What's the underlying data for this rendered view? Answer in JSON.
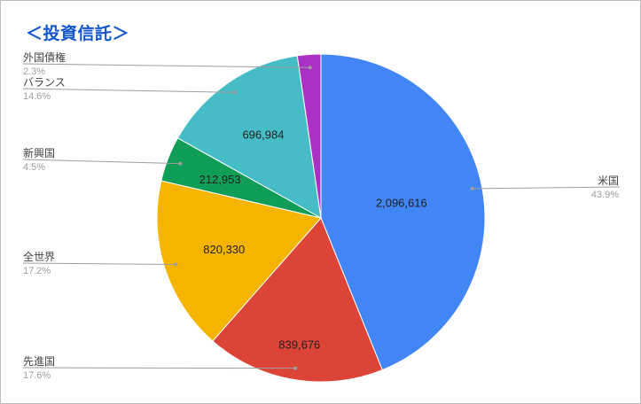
{
  "title": "＜投資信託＞",
  "chart_data": {
    "type": "pie",
    "title": "＜投資信託＞",
    "slices": [
      {
        "name": "米国",
        "value": 2096616,
        "value_label": "2,096,616",
        "percent_label": "43.9%",
        "color": "#4285f4"
      },
      {
        "name": "先進国",
        "value": 839676,
        "value_label": "839,676",
        "percent_label": "17.6%",
        "color": "#db4437"
      },
      {
        "name": "全世界",
        "value": 820330,
        "value_label": "820,330",
        "percent_label": "17.2%",
        "color": "#f4b400"
      },
      {
        "name": "新興国",
        "value": 212953,
        "value_label": "212,953",
        "percent_label": "4.5%",
        "color": "#0f9d58"
      },
      {
        "name": "バランス",
        "value": 696984,
        "value_label": "696,984",
        "percent_label": "14.6%",
        "color": "#46bdc6"
      },
      {
        "name": "外国債権",
        "value": 110000,
        "value_label": "",
        "percent_label": "2.3%",
        "color": "#ab30c4"
      }
    ],
    "legend": "side-labels"
  }
}
